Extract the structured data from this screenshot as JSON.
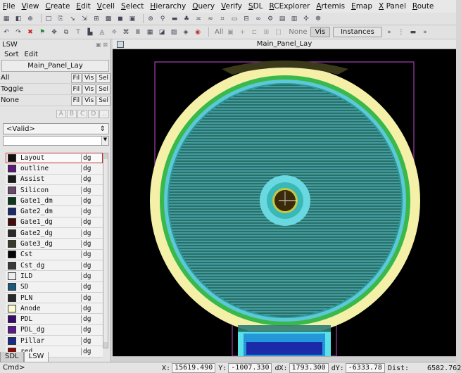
{
  "menu": [
    "File",
    "View",
    "Create",
    "Edit",
    "Vcell",
    "Select",
    "Hierarchy",
    "Query",
    "Verify",
    "SDL",
    "RCExplorer",
    "Artemis",
    "Emap",
    "X Panel",
    "Route"
  ],
  "toolbar2": {
    "all": "All",
    "none": "None",
    "vis": "Vis",
    "instances": "Instances"
  },
  "lsw": {
    "title": "LSW",
    "menu_sort": "Sort",
    "menu_edit": "Edit",
    "cell_name": "Main_Panel_Lay",
    "rows": [
      {
        "label": "All",
        "fil": "Fil",
        "vis": "Vis",
        "sel": "Sel"
      },
      {
        "label": "Toggle",
        "fil": "Fil",
        "vis": "Vis",
        "sel": "Sel"
      },
      {
        "label": "None",
        "fil": "Fil",
        "vis": "Vis",
        "sel": "Sel"
      }
    ],
    "abcd": [
      "A",
      "B",
      "C",
      "D"
    ],
    "valid_select": "<Valid>",
    "layers": [
      {
        "name": "Layout",
        "purpose": "dg",
        "color": "#101010"
      },
      {
        "name": "outline",
        "purpose": "dg",
        "color": "#5a1a7a"
      },
      {
        "name": "Assist",
        "purpose": "dg",
        "color": "#1a1a1a"
      },
      {
        "name": "Silicon",
        "purpose": "dg",
        "color": "#6a4a6a"
      },
      {
        "name": "Gate1_dm",
        "purpose": "dg",
        "color": "#0a3a1a"
      },
      {
        "name": "Gate2_dm",
        "purpose": "dg",
        "color": "#1a2a6a"
      },
      {
        "name": "Gate1_dg",
        "purpose": "dg",
        "color": "#4a0a0a"
      },
      {
        "name": "Gate2_dg",
        "purpose": "dg",
        "color": "#2a2a2a"
      },
      {
        "name": "Gate3_dg",
        "purpose": "dg",
        "color": "#3a3a2a"
      },
      {
        "name": "Cst",
        "purpose": "dg",
        "color": "#050505"
      },
      {
        "name": "Cst_dg",
        "purpose": "dg",
        "color": "#3a3a3a"
      },
      {
        "name": "ILD",
        "purpose": "dg",
        "color": "#ececec"
      },
      {
        "name": "SD",
        "purpose": "dg",
        "color": "#1a5a7a"
      },
      {
        "name": "PLN",
        "purpose": "dg",
        "color": "#2a2a2a"
      },
      {
        "name": "Anode",
        "purpose": "dg",
        "color": "#fafad0"
      },
      {
        "name": "PDL",
        "purpose": "dg",
        "color": "#3a0a6a"
      },
      {
        "name": "PDL_dg",
        "purpose": "dg",
        "color": "#5a1a8a"
      },
      {
        "name": "Pillar",
        "purpose": "dg",
        "color": "#1a2a8a"
      },
      {
        "name": "red",
        "purpose": "dg",
        "color": "#8a0a0a"
      }
    ],
    "tabs": [
      "SDL",
      "LSW"
    ]
  },
  "canvas": {
    "window_title": "Main_Panel_Lay"
  },
  "status": {
    "cmd": "Cmd>",
    "x_label": "X:",
    "x": "15619.490",
    "y_label": "Y:",
    "y": "-1007.330",
    "dx_label": "dX:",
    "dx": "1793.300",
    "dy_label": "dY:",
    "dy": "-6333.78",
    "dist_label": "Dist:",
    "dist": "6582.762"
  }
}
